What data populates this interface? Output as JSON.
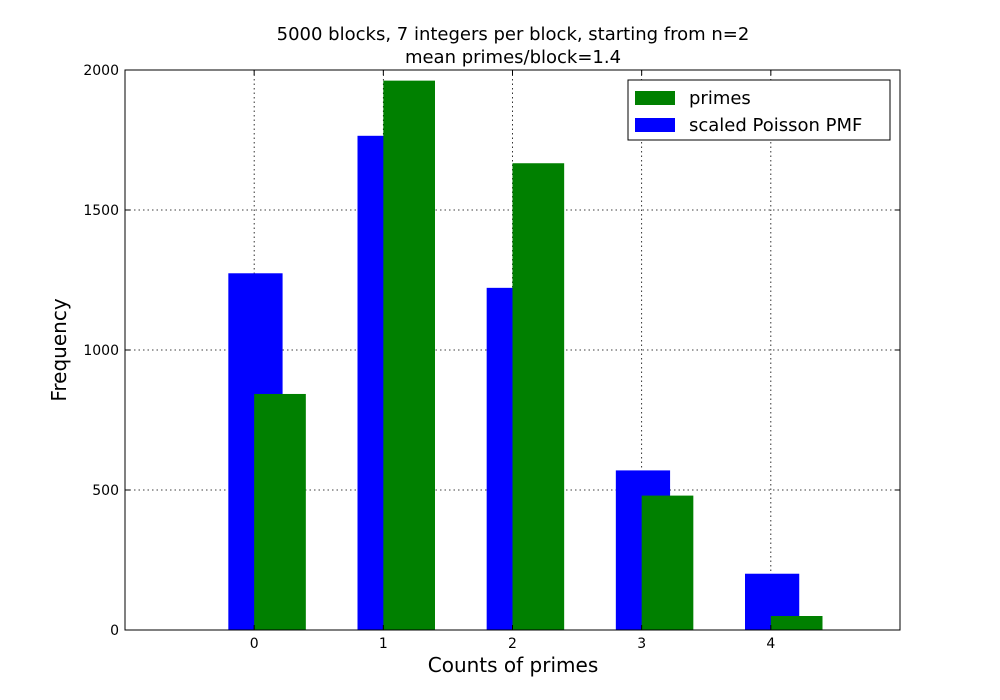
{
  "chart_data": {
    "type": "bar",
    "title": "5000 blocks, 7 integers per block, starting from n=2",
    "subtitle": "mean primes/block=1.4",
    "xlabel": "Counts of primes",
    "ylabel": "Frequency",
    "categories": [
      "0",
      "1",
      "2",
      "3",
      "4"
    ],
    "x": [
      0,
      1,
      2,
      3,
      4
    ],
    "xlim": [
      -1,
      5
    ],
    "ylim": [
      0,
      2000
    ],
    "yticks": [
      0,
      500,
      1000,
      1500,
      2000
    ],
    "grid": true,
    "legend_position": "top-right",
    "series": [
      {
        "name": "scaled Poisson PMF",
        "color": "#0000ff",
        "offset": -0.2,
        "width": 0.42,
        "values": [
          1274,
          1765,
          1222,
          570,
          201
        ]
      },
      {
        "name": "primes",
        "color": "#008000",
        "offset": 0.0,
        "width": 0.4,
        "values": [
          843,
          1962,
          1667,
          480,
          50
        ]
      }
    ],
    "legend_order": [
      1,
      0
    ]
  }
}
